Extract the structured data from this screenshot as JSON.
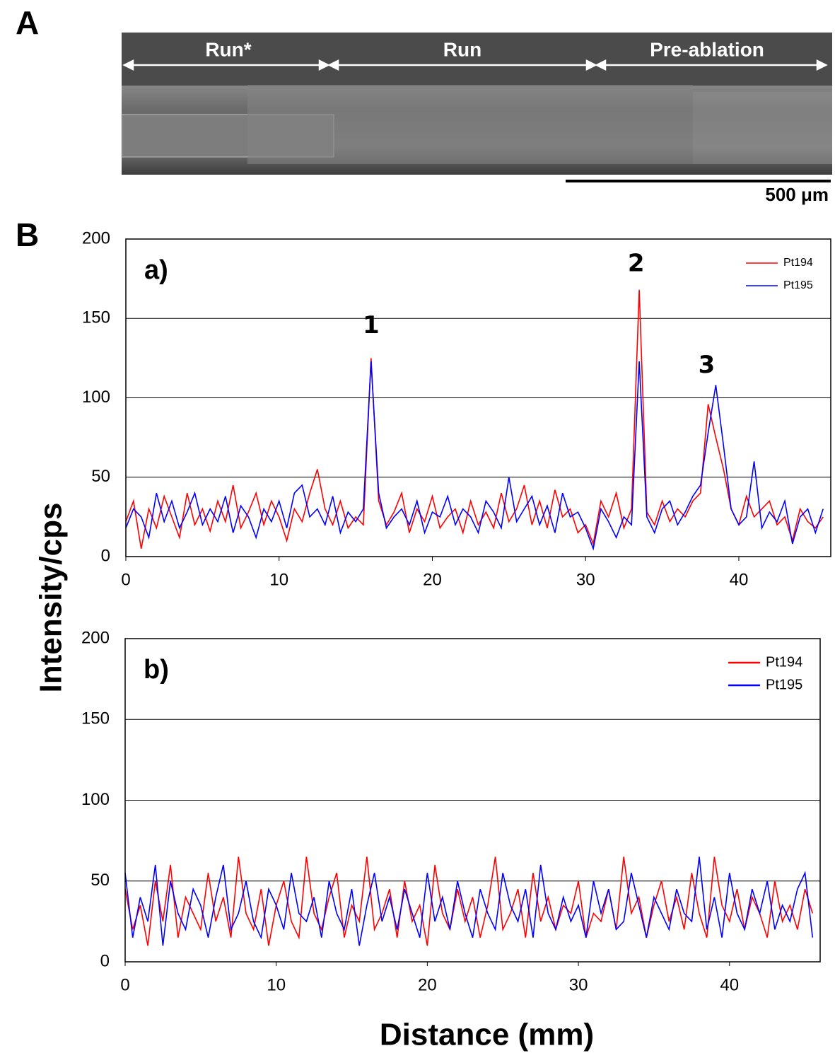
{
  "panel_a": {
    "label": "A",
    "regions": [
      "Run*",
      "Run",
      "Pre-ablation"
    ],
    "scale_bar": "500 μm"
  },
  "panel_b_label": "B",
  "chart_data": [
    {
      "type": "line",
      "panel_label": "a)",
      "y_label": "Intensity/cps",
      "x": [
        0,
        0.5,
        1,
        1.5,
        2,
        2.5,
        3,
        3.5,
        4,
        4.5,
        5,
        5.5,
        6,
        6.5,
        7,
        7.5,
        8,
        8.5,
        9,
        9.5,
        10,
        10.5,
        11,
        11.5,
        12,
        12.5,
        13,
        13.5,
        14,
        14.5,
        15,
        15.5,
        16,
        16.5,
        17,
        17.5,
        18,
        18.5,
        19,
        19.5,
        20,
        20.5,
        21,
        21.5,
        22,
        22.5,
        23,
        23.5,
        24,
        24.5,
        25,
        25.5,
        26,
        26.5,
        27,
        27.5,
        28,
        28.5,
        29,
        29.5,
        30,
        30.5,
        31,
        31.5,
        32,
        32.5,
        33,
        33.5,
        34,
        34.5,
        35,
        35.5,
        36,
        36.5,
        37,
        37.5,
        38,
        38.5,
        39,
        39.5,
        40,
        40.5,
        41,
        41.5,
        42,
        42.5,
        43,
        43.5,
        44,
        44.5,
        45,
        45.5
      ],
      "series": [
        {
          "name": "Pt194",
          "color": "#ff0000",
          "values": [
            22,
            35,
            5,
            30,
            18,
            38,
            25,
            12,
            40,
            20,
            30,
            16,
            35,
            22,
            45,
            18,
            28,
            40,
            20,
            35,
            25,
            10,
            30,
            22,
            40,
            55,
            30,
            20,
            35,
            18,
            25,
            20,
            125,
            35,
            20,
            28,
            40,
            15,
            30,
            22,
            38,
            18,
            25,
            30,
            15,
            35,
            20,
            28,
            18,
            40,
            22,
            30,
            45,
            20,
            35,
            18,
            42,
            25,
            30,
            15,
            20,
            8,
            35,
            25,
            40,
            18,
            30,
            168,
            28,
            20,
            35,
            22,
            30,
            25,
            35,
            40,
            96,
            75,
            55,
            30,
            20,
            38,
            25,
            30,
            35,
            20,
            25,
            10,
            30,
            22,
            18,
            25
          ]
        },
        {
          "name": "Pt195",
          "color": "#0000ff",
          "values": [
            18,
            30,
            25,
            12,
            40,
            22,
            35,
            18,
            28,
            40,
            20,
            30,
            22,
            38,
            15,
            32,
            25,
            12,
            30,
            22,
            35,
            18,
            40,
            45,
            25,
            30,
            20,
            38,
            15,
            28,
            22,
            30,
            123,
            40,
            18,
            25,
            30,
            20,
            35,
            15,
            28,
            25,
            38,
            20,
            30,
            25,
            15,
            35,
            28,
            18,
            50,
            22,
            30,
            38,
            20,
            32,
            15,
            40,
            25,
            28,
            18,
            5,
            30,
            22,
            12,
            25,
            20,
            123,
            25,
            15,
            30,
            35,
            20,
            28,
            38,
            45,
            78,
            108,
            70,
            30,
            20,
            25,
            60,
            18,
            28,
            22,
            35,
            8,
            25,
            30,
            15,
            30
          ]
        }
      ],
      "annotations": [
        {
          "text": "1",
          "x": 16.0,
          "y": 145
        },
        {
          "text": "2",
          "x": 33.3,
          "y": 184
        },
        {
          "text": "3",
          "x": 37.9,
          "y": 120
        }
      ],
      "xlim": [
        0,
        46
      ],
      "xticks": [
        0,
        10,
        20,
        30,
        40
      ],
      "ylim": [
        0,
        200
      ],
      "yticks": [
        0,
        50,
        100,
        150,
        200
      ],
      "grid": true,
      "legend": "upper right"
    },
    {
      "type": "line",
      "panel_label": "b)",
      "x_label": "Distance (mm)",
      "x": [
        0,
        0.5,
        1,
        1.5,
        2,
        2.5,
        3,
        3.5,
        4,
        4.5,
        5,
        5.5,
        6,
        6.5,
        7,
        7.5,
        8,
        8.5,
        9,
        9.5,
        10,
        10.5,
        11,
        11.5,
        12,
        12.5,
        13,
        13.5,
        14,
        14.5,
        15,
        15.5,
        16,
        16.5,
        17,
        17.5,
        18,
        18.5,
        19,
        19.5,
        20,
        20.5,
        21,
        21.5,
        22,
        22.5,
        23,
        23.5,
        24,
        24.5,
        25,
        25.5,
        26,
        26.5,
        27,
        27.5,
        28,
        28.5,
        29,
        29.5,
        30,
        30.5,
        31,
        31.5,
        32,
        32.5,
        33,
        33.5,
        34,
        34.5,
        35,
        35.5,
        36,
        36.5,
        37,
        37.5,
        38,
        38.5,
        39,
        39.5,
        40,
        40.5,
        41,
        41.5,
        42,
        42.5,
        43,
        43.5,
        44,
        44.5,
        45,
        45.5
      ],
      "series": [
        {
          "name": "Pt194",
          "color": "#ff0000",
          "values": [
            45,
            20,
            35,
            10,
            50,
            25,
            60,
            15,
            40,
            30,
            20,
            55,
            25,
            40,
            15,
            65,
            30,
            20,
            45,
            10,
            35,
            50,
            25,
            15,
            65,
            30,
            20,
            40,
            55,
            15,
            35,
            25,
            65,
            20,
            30,
            45,
            15,
            50,
            25,
            35,
            10,
            60,
            30,
            20,
            45,
            25,
            40,
            15,
            35,
            65,
            20,
            30,
            45,
            15,
            55,
            25,
            40,
            20,
            35,
            30,
            50,
            15,
            30,
            25,
            45,
            20,
            65,
            30,
            40,
            15,
            35,
            50,
            25,
            40,
            20,
            55,
            30,
            15,
            65,
            35,
            25,
            45,
            20,
            40,
            30,
            15,
            50,
            25,
            35,
            20,
            45,
            30
          ]
        },
        {
          "name": "Pt195",
          "color": "#0000ff",
          "values": [
            55,
            15,
            40,
            25,
            60,
            10,
            50,
            30,
            20,
            45,
            35,
            15,
            40,
            60,
            20,
            30,
            50,
            25,
            15,
            45,
            35,
            20,
            55,
            30,
            25,
            40,
            15,
            50,
            30,
            20,
            45,
            10,
            35,
            55,
            25,
            40,
            20,
            45,
            30,
            15,
            55,
            25,
            40,
            20,
            50,
            30,
            15,
            45,
            30,
            20,
            55,
            35,
            25,
            45,
            15,
            60,
            30,
            20,
            40,
            25,
            35,
            15,
            50,
            30,
            45,
            20,
            25,
            55,
            35,
            15,
            40,
            30,
            20,
            45,
            30,
            25,
            65,
            20,
            40,
            15,
            55,
            30,
            20,
            45,
            30,
            50,
            20,
            35,
            25,
            45,
            55,
            15
          ]
        }
      ],
      "xlim": [
        0,
        46
      ],
      "xticks": [
        0,
        10,
        20,
        30,
        40
      ],
      "ylim": [
        0,
        200
      ],
      "yticks": [
        0,
        50,
        100,
        150,
        200
      ],
      "grid": true,
      "legend": "upper right"
    }
  ]
}
